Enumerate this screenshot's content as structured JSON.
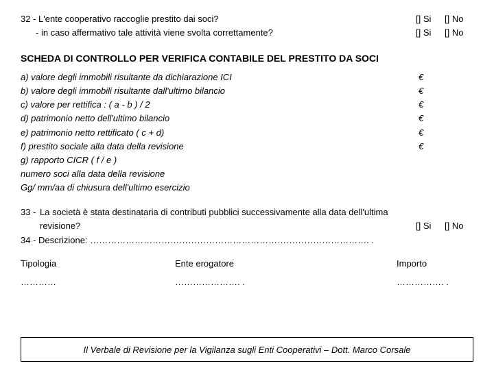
{
  "q32": {
    "text": "32 - L'ente cooperativo raccoglie prestito dai soci?",
    "sub": "- in caso affermativo tale attività viene svolta correttamente?",
    "si": "[] Si",
    "no": "[] No"
  },
  "section_title": "SCHEDA DI CONTROLLO PER  VERIFICA CONTABILE DEL PRESTITO DA SOCI",
  "lines": [
    {
      "label": "a) valore degli immobili risultante da dichiarazione ICI",
      "val": "€"
    },
    {
      "label": "b) valore degli immobili risultante dall'ultimo bilancio",
      "val": "€"
    },
    {
      "label": "c) valore per rettifica : ( a - b ) / 2",
      "val": "€"
    },
    {
      "label": "d) patrimonio netto dell'ultimo bilancio",
      "val": "€"
    },
    {
      "label": "e) patrimonio netto rettificato  ( c + d)",
      "val": "€"
    },
    {
      "label": "f) prestito sociale alla data della revisione",
      "val": "€"
    },
    {
      "label": "g) rapporto CICR  ( f / e )",
      "val": ""
    },
    {
      "label": "numero soci alla data della revisione",
      "val": ""
    },
    {
      "label": "Gg/ mm/aa di chiusura dell'ultimo esercizio",
      "val": ""
    }
  ],
  "q33": {
    "num": "33 -",
    "line1": "La società è stata destinataria di contributi pubblici successivamente alla data dell'ultima",
    "line2": "revisione?",
    "si": "[] Si",
    "no": "[] No"
  },
  "q34": "34 - Descrizione: …………………………………………………………………………………. .",
  "table": {
    "h1": "Tipologia",
    "h2": "Ente erogatore",
    "h3": "Importo",
    "d1": "…………",
    "d2": "…………………. .",
    "d3": "……………. ."
  },
  "footer": "Il Verbale di Revisione per la Vigilanza sugli Enti Cooperativi – Dott. Marco Corsale"
}
